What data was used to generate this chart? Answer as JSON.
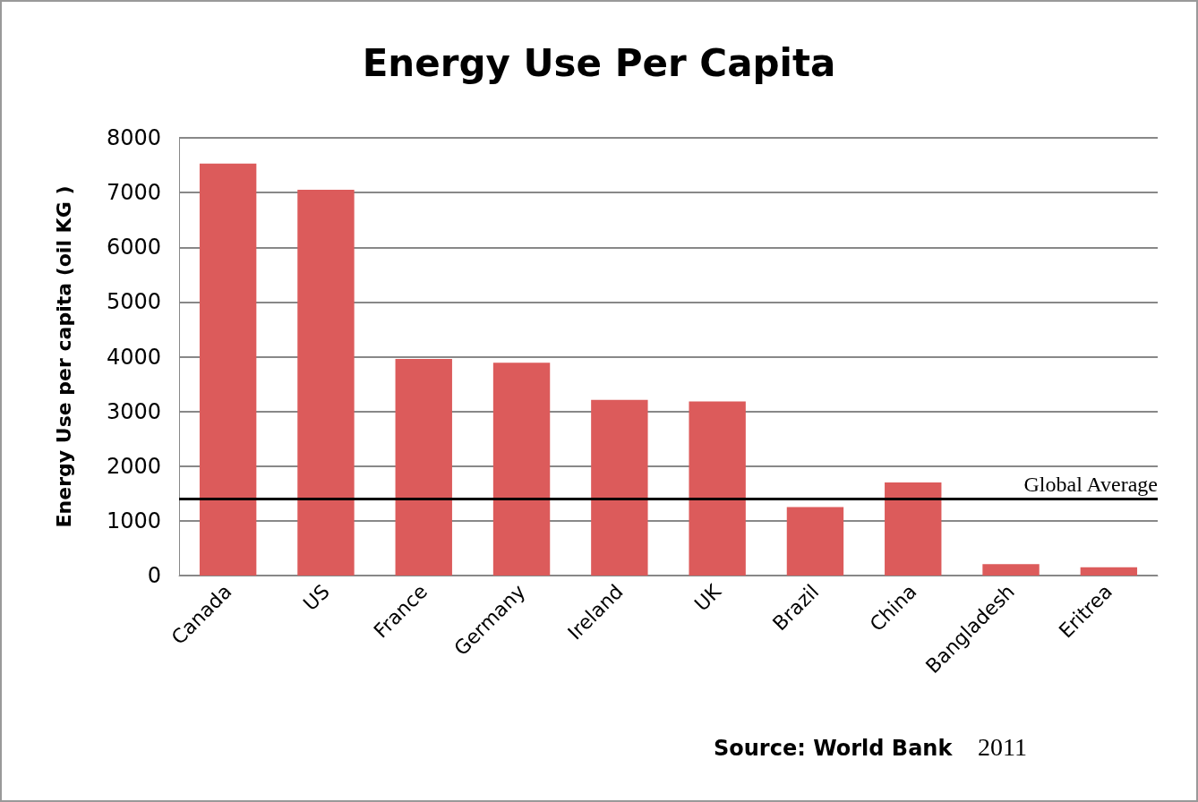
{
  "chart_data": {
    "type": "bar",
    "title": "Energy Use Per Capita",
    "ylabel": "Energy Use per capita (oil KG )",
    "categories": [
      "Canada",
      "US",
      "France",
      "Germany",
      "Ireland",
      "UK",
      "Brazil",
      "China",
      "Bangladesh",
      "Eritrea"
    ],
    "values": [
      7530,
      7050,
      3960,
      3890,
      3210,
      3180,
      1250,
      1700,
      210,
      150
    ],
    "color": "#dc5b5b",
    "ylim": [
      0,
      8000
    ],
    "yticks": [
      0,
      1000,
      2000,
      3000,
      4000,
      5000,
      6000,
      7000,
      8000
    ],
    "grid": "y",
    "ref_lines": [
      {
        "axis": "y",
        "value": 1410,
        "label": "Global Average",
        "color": "#000000"
      }
    ],
    "annotations": [
      "Source: World Bank",
      "2011"
    ]
  }
}
